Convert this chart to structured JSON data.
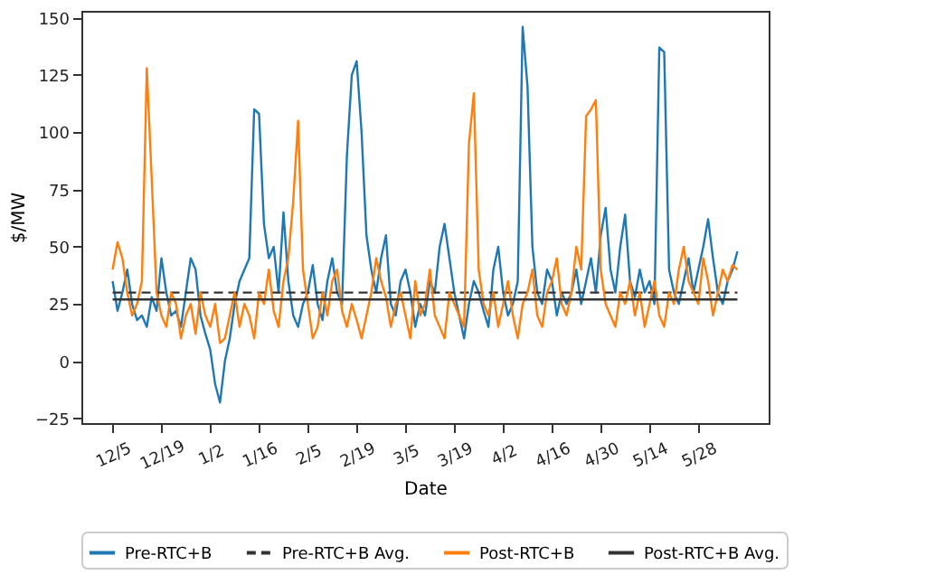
{
  "chart_data": {
    "type": "line",
    "xlabel": "Date",
    "ylabel": "$/MW",
    "categories": [
      "12/5",
      null,
      null,
      null,
      null,
      null,
      null,
      null,
      null,
      null,
      "12/19",
      null,
      null,
      null,
      null,
      null,
      null,
      null,
      null,
      null,
      "1/2",
      null,
      null,
      null,
      null,
      null,
      null,
      null,
      null,
      null,
      "1/16",
      null,
      null,
      null,
      null,
      null,
      null,
      null,
      null,
      null,
      "2/5",
      null,
      null,
      null,
      null,
      null,
      null,
      null,
      null,
      null,
      "2/19",
      null,
      null,
      null,
      null,
      null,
      null,
      null,
      null,
      null,
      "3/5",
      null,
      null,
      null,
      null,
      null,
      null,
      null,
      null,
      null,
      "3/19",
      null,
      null,
      null,
      null,
      null,
      null,
      null,
      null,
      null,
      "4/2",
      null,
      null,
      null,
      null,
      null,
      null,
      null,
      null,
      null,
      "4/16",
      null,
      null,
      null,
      null,
      null,
      null,
      null,
      null,
      null,
      "4/30",
      null,
      null,
      null,
      null,
      null,
      null,
      null,
      null,
      null,
      "5/14",
      null,
      null,
      null,
      null,
      null,
      null,
      null,
      null,
      null,
      "5/28",
      null,
      null,
      null,
      null,
      null,
      null,
      null,
      null
    ],
    "series": [
      {
        "name": "Pre-RTC+B",
        "color": "#1f77b4",
        "values": [
          35,
          22,
          30,
          40,
          25,
          18,
          20,
          15,
          28,
          22,
          45,
          30,
          20,
          22,
          15,
          30,
          45,
          40,
          20,
          12,
          5,
          -10,
          -18,
          0,
          10,
          25,
          35,
          40,
          45,
          110,
          108,
          60,
          45,
          50,
          30,
          65,
          35,
          20,
          15,
          25,
          30,
          42,
          25,
          18,
          35,
          45,
          30,
          25,
          90,
          125,
          131,
          100,
          55,
          40,
          30,
          45,
          55,
          25,
          20,
          35,
          40,
          30,
          15,
          25,
          20,
          35,
          30,
          50,
          60,
          45,
          30,
          20,
          10,
          25,
          35,
          30,
          22,
          15,
          40,
          50,
          30,
          20,
          25,
          35,
          146,
          120,
          50,
          30,
          25,
          40,
          35,
          20,
          30,
          25,
          30,
          40,
          25,
          35,
          45,
          30,
          55,
          67,
          40,
          30,
          50,
          64,
          35,
          28,
          40,
          30,
          35,
          25,
          137,
          135,
          40,
          30,
          25,
          35,
          45,
          30,
          40,
          50,
          62,
          45,
          30,
          25,
          35,
          40,
          48
        ]
      },
      {
        "name": "Pre-RTC+B Avg.",
        "color": "#333333",
        "line_style": "dashed",
        "values": [
          30,
          30,
          30,
          30,
          30,
          30,
          30,
          30,
          30,
          30,
          30,
          30,
          30,
          30,
          30,
          30,
          30,
          30,
          30,
          30,
          30,
          30,
          30,
          30,
          30,
          30,
          30,
          30,
          30,
          30,
          30,
          30,
          30,
          30,
          30,
          30,
          30,
          30,
          30,
          30,
          30,
          30,
          30,
          30,
          30,
          30,
          30,
          30,
          30,
          30,
          30,
          30,
          30,
          30,
          30,
          30,
          30,
          30,
          30,
          30,
          30,
          30,
          30,
          30,
          30,
          30,
          30,
          30,
          30,
          30,
          30,
          30,
          30,
          30,
          30,
          30,
          30,
          30,
          30,
          30,
          30,
          30,
          30,
          30,
          30,
          30,
          30,
          30,
          30,
          30,
          30,
          30,
          30,
          30,
          30,
          30,
          30,
          30,
          30,
          30,
          30,
          30,
          30,
          30,
          30,
          30,
          30,
          30,
          30,
          30,
          30,
          30,
          30,
          30,
          30,
          30,
          30,
          30,
          30,
          30,
          30,
          30,
          30,
          30,
          30,
          30,
          30,
          30,
          30
        ]
      },
      {
        "name": "Post-RTC+B",
        "color": "#ff7f0e",
        "values": [
          40,
          52,
          45,
          30,
          20,
          25,
          35,
          128,
          80,
          30,
          20,
          15,
          30,
          25,
          10,
          20,
          25,
          12,
          30,
          20,
          15,
          25,
          8,
          10,
          20,
          30,
          15,
          25,
          20,
          10,
          30,
          25,
          40,
          22,
          15,
          35,
          45,
          70,
          105,
          40,
          25,
          10,
          15,
          30,
          20,
          35,
          40,
          22,
          15,
          25,
          18,
          10,
          20,
          30,
          45,
          35,
          28,
          15,
          25,
          30,
          20,
          10,
          35,
          20,
          25,
          40,
          20,
          15,
          10,
          30,
          25,
          20,
          15,
          95,
          117,
          40,
          25,
          20,
          30,
          15,
          25,
          35,
          20,
          10,
          25,
          30,
          40,
          20,
          15,
          30,
          35,
          45,
          25,
          20,
          30,
          50,
          40,
          107,
          110,
          114,
          40,
          25,
          20,
          15,
          30,
          25,
          35,
          20,
          30,
          15,
          25,
          35,
          20,
          15,
          30,
          25,
          40,
          50,
          35,
          30,
          25,
          45,
          35,
          20,
          30,
          40,
          35,
          42,
          40
        ]
      },
      {
        "name": "Post-RTC+B Avg.",
        "color": "#333333",
        "line_style": "solid",
        "values": [
          27,
          27,
          27,
          27,
          27,
          27,
          27,
          27,
          27,
          27,
          27,
          27,
          27,
          27,
          27,
          27,
          27,
          27,
          27,
          27,
          27,
          27,
          27,
          27,
          27,
          27,
          27,
          27,
          27,
          27,
          27,
          27,
          27,
          27,
          27,
          27,
          27,
          27,
          27,
          27,
          27,
          27,
          27,
          27,
          27,
          27,
          27,
          27,
          27,
          27,
          27,
          27,
          27,
          27,
          27,
          27,
          27,
          27,
          27,
          27,
          27,
          27,
          27,
          27,
          27,
          27,
          27,
          27,
          27,
          27,
          27,
          27,
          27,
          27,
          27,
          27,
          27,
          27,
          27,
          27,
          27,
          27,
          27,
          27,
          27,
          27,
          27,
          27,
          27,
          27,
          27,
          27,
          27,
          27,
          27,
          27,
          27,
          27,
          27,
          27,
          27,
          27,
          27,
          27,
          27,
          27,
          27,
          27,
          27,
          27,
          27,
          27,
          27,
          27,
          27,
          27,
          27,
          27,
          27,
          27,
          27,
          27,
          27,
          27,
          27,
          27,
          27,
          27,
          27
        ]
      }
    ],
    "ylim": [
      -27,
      153
    ],
    "yticks": [
      -25,
      0,
      25,
      50,
      75,
      100,
      125,
      150
    ],
    "grid": false,
    "legend": "bottom",
    "marker": "none"
  }
}
